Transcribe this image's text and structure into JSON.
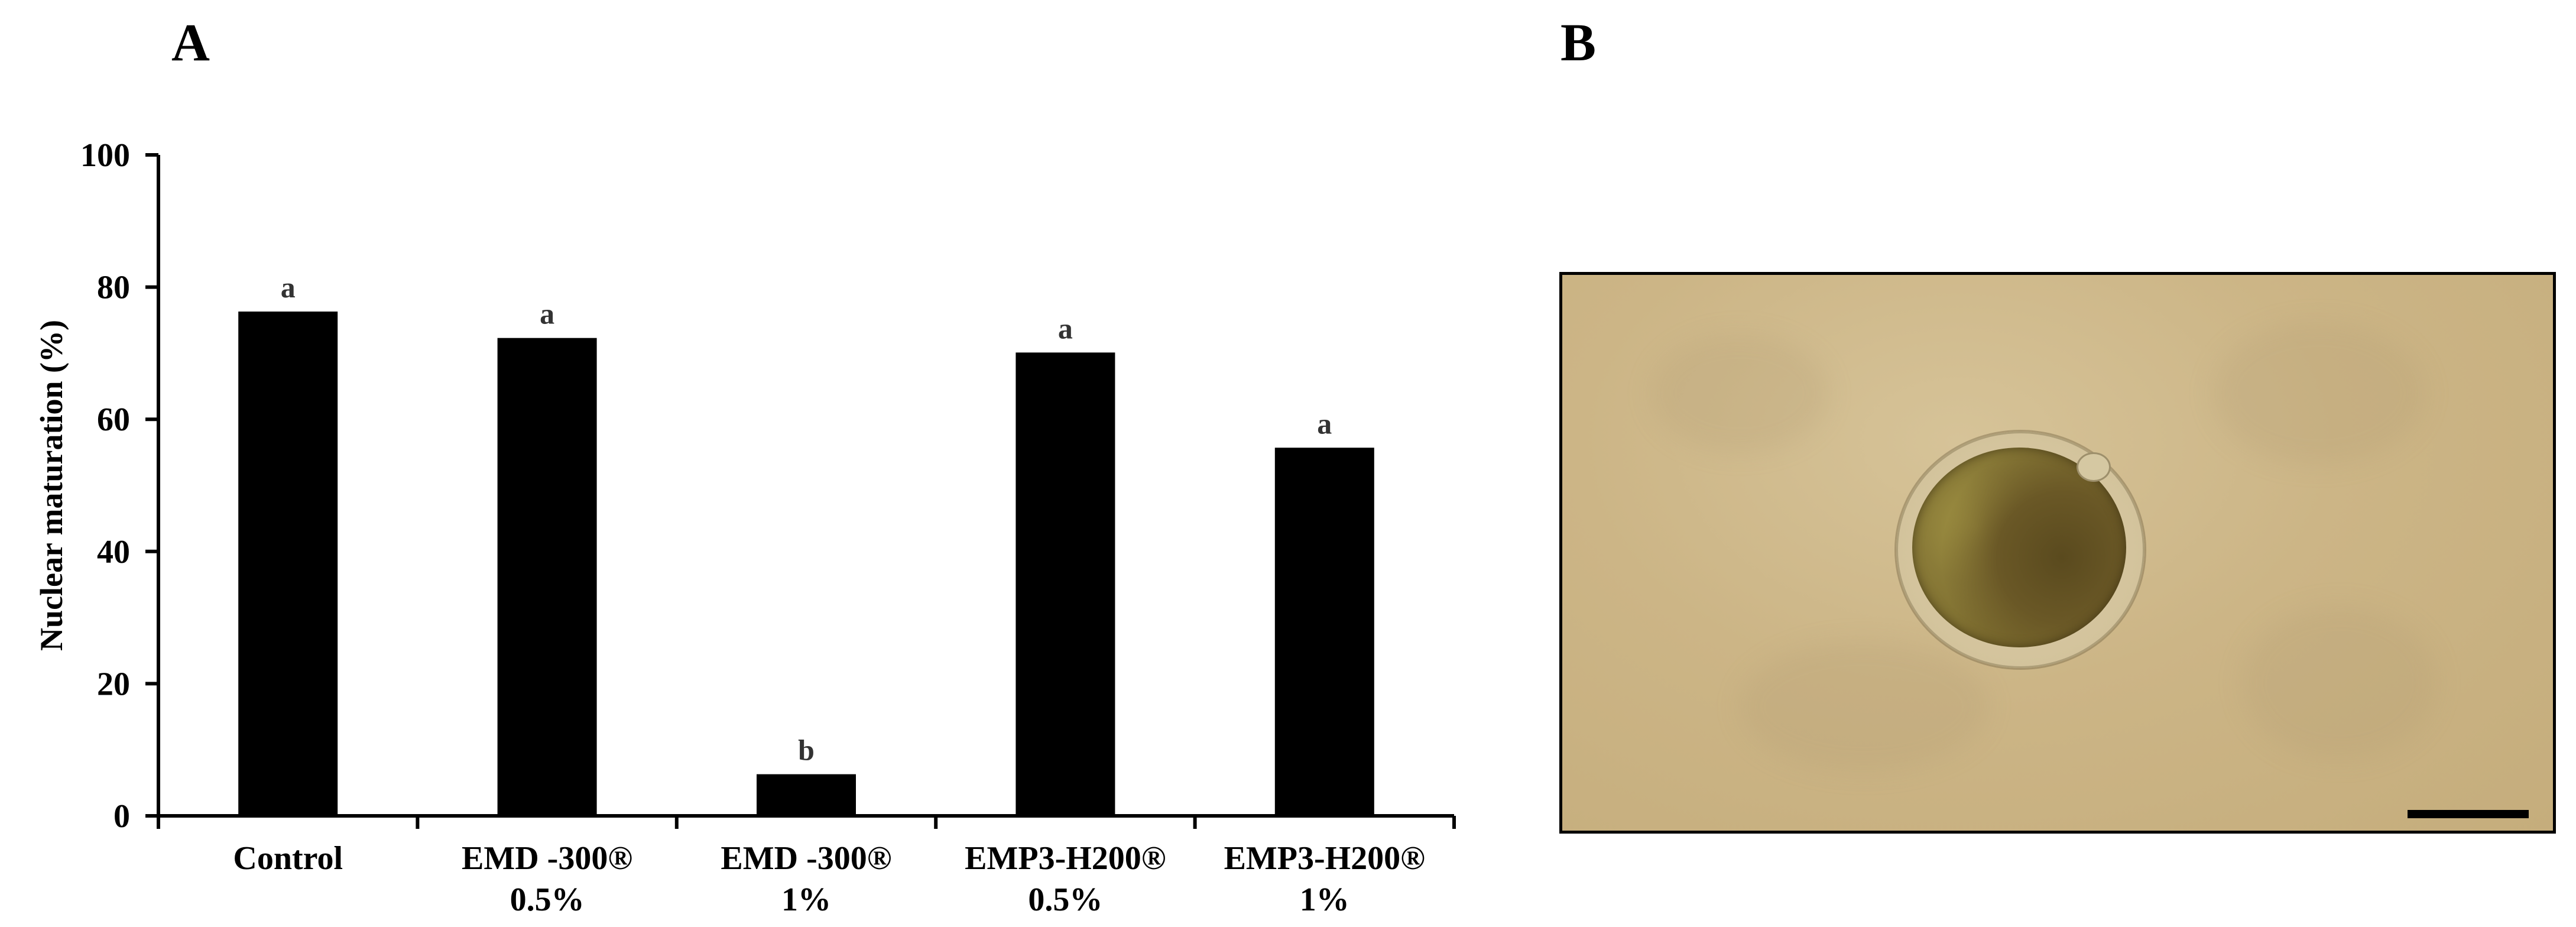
{
  "panels": {
    "a_label": "A",
    "b_label": "B"
  },
  "chart_data": {
    "type": "bar",
    "title": "",
    "ylabel": "Nuclear maturation (%)",
    "xlabel": "",
    "ylim": [
      0,
      100
    ],
    "yticks": [
      0,
      20,
      40,
      60,
      80,
      100
    ],
    "grid": false,
    "legend": "none",
    "bar_color": "#000000",
    "categories": [
      [
        "Control"
      ],
      [
        "EMD -300®",
        "0.5%"
      ],
      [
        "EMD -300®",
        "1%"
      ],
      [
        "EMP3-H200®",
        "0.5%"
      ],
      [
        "EMP3-H200®",
        "1%"
      ]
    ],
    "values": [
      76.3,
      72.3,
      6.3,
      70.1,
      55.7
    ],
    "significance_labels": [
      "a",
      "a",
      "b",
      "a",
      "a"
    ]
  },
  "micrograph": {
    "description_icon": "oocyte-micrograph",
    "background_color": "#ccb586",
    "scale_bar_color": "#000000"
  }
}
